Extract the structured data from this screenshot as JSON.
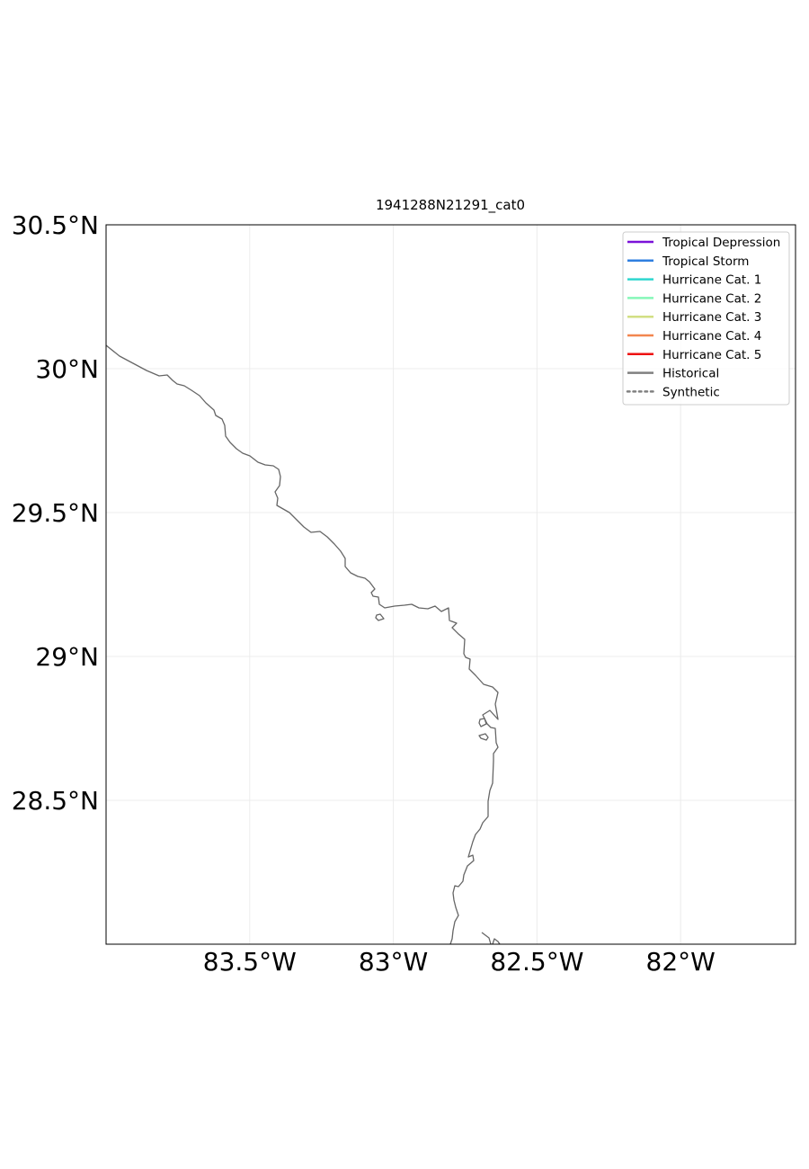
{
  "map": {
    "title": "1941288N21291_cat0",
    "lon_range": [
      -84.0,
      -81.6
    ],
    "lat_range": [
      28.0,
      30.5
    ],
    "grid": true,
    "lon_ticks": [
      {
        "value": -83.5,
        "label": "83.5°W"
      },
      {
        "value": -83.0,
        "label": "83°W"
      },
      {
        "value": -82.5,
        "label": "82.5°W"
      },
      {
        "value": -82.0,
        "label": "82°W"
      }
    ],
    "lat_ticks": [
      {
        "value": 30.5,
        "label": "30.5°N"
      },
      {
        "value": 30.0,
        "label": "30°N"
      },
      {
        "value": 29.5,
        "label": "29.5°N"
      },
      {
        "value": 29.0,
        "label": "29°N"
      },
      {
        "value": 28.5,
        "label": "28.5°N"
      }
    ],
    "coastline_color": "#666666"
  },
  "legend": {
    "placement": "top-right",
    "items": [
      {
        "label": "Tropical Depression",
        "color": "#7b12d8",
        "style": "solid"
      },
      {
        "label": "Tropical Storm",
        "color": "#2f7fe0",
        "style": "solid"
      },
      {
        "label": "Hurricane Cat. 1",
        "color": "#2ed6cf",
        "style": "solid"
      },
      {
        "label": "Hurricane Cat. 2",
        "color": "#86f7b8",
        "style": "solid"
      },
      {
        "label": "Hurricane Cat. 3",
        "color": "#d2df83",
        "style": "solid"
      },
      {
        "label": "Hurricane Cat. 4",
        "color": "#f2864f",
        "style": "solid"
      },
      {
        "label": "Hurricane Cat. 5",
        "color": "#ee1111",
        "style": "solid"
      },
      {
        "label": "Historical",
        "color": "#808080",
        "style": "solid"
      },
      {
        "label": "Synthetic",
        "color": "#808080",
        "style": "dotted"
      }
    ]
  }
}
